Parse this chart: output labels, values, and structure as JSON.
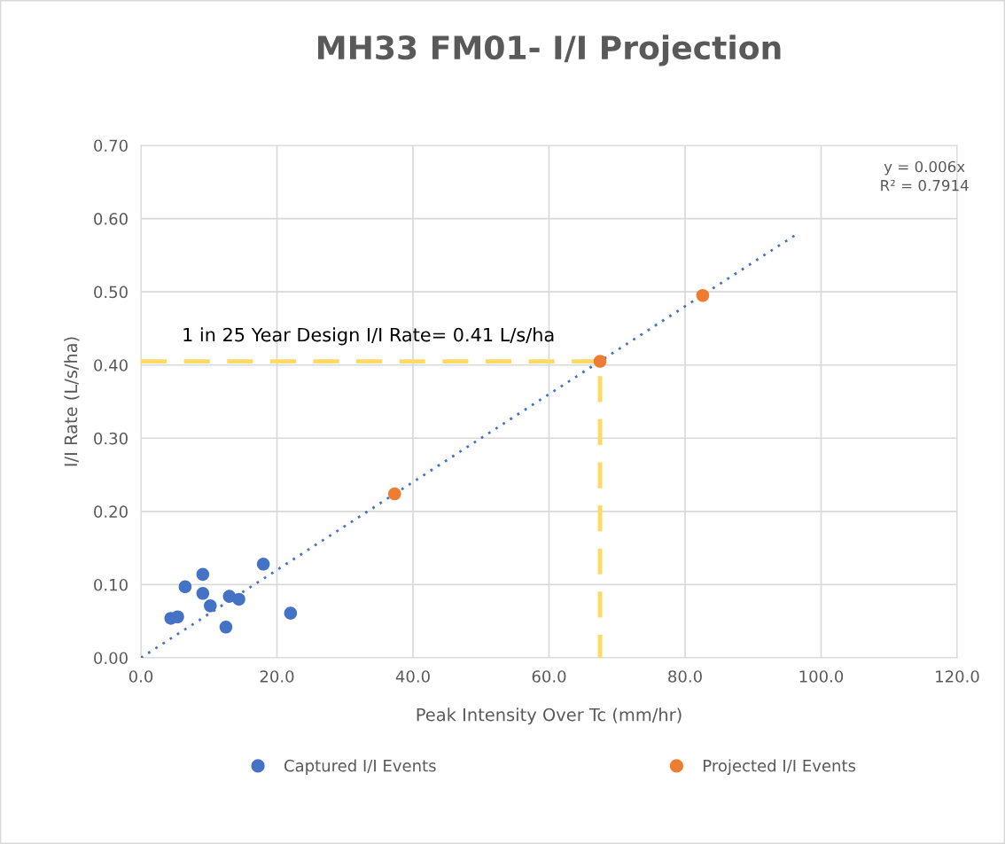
{
  "chart_data": {
    "type": "scatter",
    "title": "MH33 FM01- I/I Projection",
    "xlabel": "Peak Intensity Over Tc (mm/hr)",
    "ylabel": "I/I Rate (L/s/ha)",
    "series": [
      {
        "name": "Captured I/I Events",
        "color": "#4472c4",
        "x": [
          4.4,
          5.4,
          6.5,
          9.1,
          9.1,
          10.2,
          13.0,
          14.4,
          12.5,
          18.0,
          22.0
        ],
        "values": [
          0.054,
          0.056,
          0.097,
          0.114,
          0.088,
          0.071,
          0.084,
          0.08,
          0.042,
          0.128,
          0.061
        ]
      },
      {
        "name": "Projected I/I Events",
        "color": "#ed7d31",
        "x": [
          37.3,
          67.5,
          82.6
        ],
        "values": [
          0.224,
          0.405,
          0.495
        ]
      },
      {
        "type": "line",
        "color": "#4472c4",
        "line_style": "dotted",
        "marker": "none",
        "x": [
          0,
          96.3
        ],
        "values": [
          0,
          0.578
        ]
      },
      {
        "type": "line",
        "color": "#ffd966",
        "line_style": "dashed",
        "marker": "none",
        "x": [
          0,
          67.5,
          67.5
        ],
        "values": [
          0.405,
          0.405,
          0
        ]
      }
    ],
    "annotations": [
      "y = 0.006x\nR² = 0.7914",
      "1 in 25 Year Design I/I Rate= 0.41 L/s/ha"
    ],
    "xlim": [
      0,
      120
    ],
    "xticks": [
      {
        "value": 0,
        "label": "0.0"
      },
      {
        "value": 20,
        "label": "20.0"
      },
      {
        "value": 40,
        "label": "40.0"
      },
      {
        "value": 60,
        "label": "60.0"
      },
      {
        "value": 80,
        "label": "80.0"
      },
      {
        "value": 100,
        "label": "100.0"
      },
      {
        "value": 120,
        "label": "120.0"
      }
    ],
    "ylim": [
      0,
      0.7
    ],
    "yticks": [
      {
        "value": 0,
        "label": "0.00"
      },
      {
        "value": 0.1,
        "label": "0.10"
      },
      {
        "value": 0.2,
        "label": "0.20"
      },
      {
        "value": 0.3,
        "label": "0.30"
      },
      {
        "value": 0.4,
        "label": "0.40"
      },
      {
        "value": 0.5,
        "label": "0.50"
      },
      {
        "value": 0.6,
        "label": "0.60"
      },
      {
        "value": 0.7,
        "label": "0.70"
      }
    ],
    "grid": true,
    "legend": "bottom",
    "marker": "circle"
  }
}
